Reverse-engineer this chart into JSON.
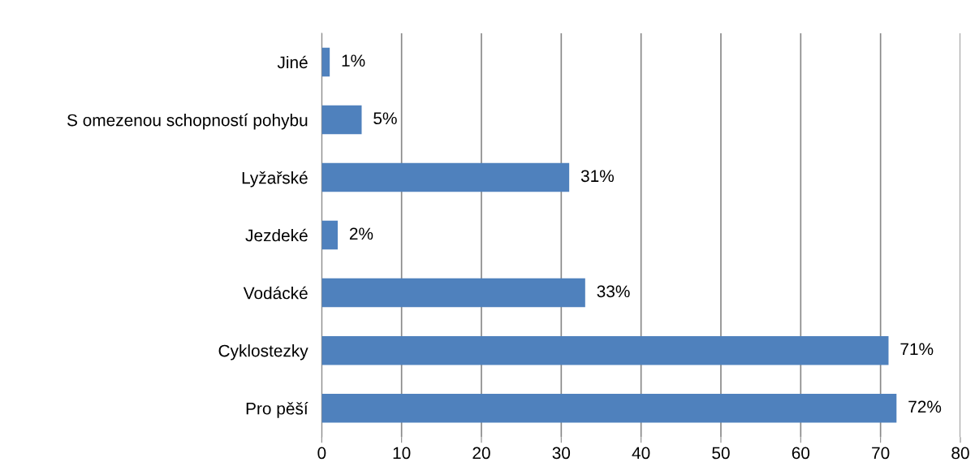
{
  "chart_data": {
    "type": "bar",
    "orientation": "horizontal",
    "categories": [
      "Jiné",
      "S omezenou schopností pohybu",
      "Lyžařské",
      "Jezdeké",
      "Vodácké",
      "Cyklostezky",
      "Pro pěší"
    ],
    "values": [
      1,
      5,
      31,
      2,
      33,
      71,
      72
    ],
    "value_labels": [
      "1%",
      "5%",
      "31%",
      "2%",
      "33%",
      "71%",
      "72%"
    ],
    "color": "#4f81bd",
    "xlim": [
      0,
      80
    ],
    "xticks": [
      0,
      10,
      20,
      30,
      40,
      50,
      60,
      70,
      80
    ],
    "grid": "x",
    "legend": false
  }
}
